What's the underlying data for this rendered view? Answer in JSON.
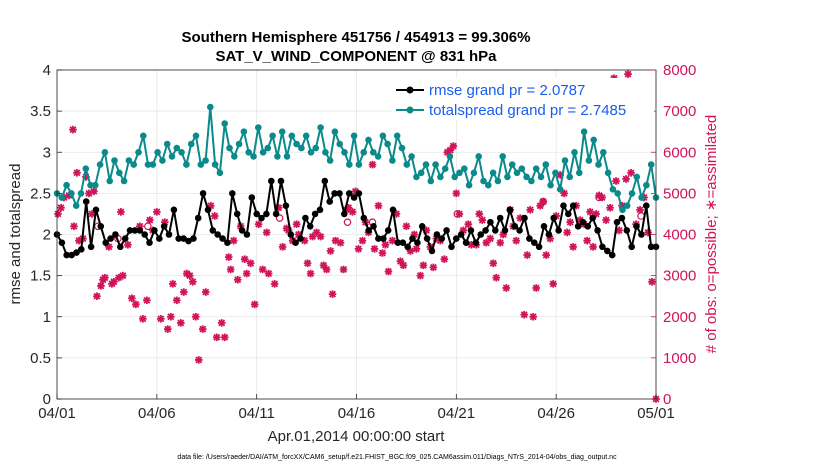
{
  "chart_data": {
    "type": "line",
    "title": "Southern Hemisphere 451756 / 454913 = 99.306%",
    "subtitle": "SAT_V_WIND_COMPONENT @ 831 hPa",
    "xlabel": "Apr.01,2014 00:00:00 start",
    "ylabel": "rmse and totalspread",
    "y2label": "# of obs: o=possible; ∗=assimilated",
    "footnote": "data file: /Users/raeder/DAI/ATM_forcXX/CAM6_setup/f.e21.FHIST_BGC.f09_025.CAM6assim.011/Diags_NTrS_2014-04/obs_diag_output.nc",
    "xlim": [
      0,
      30
    ],
    "ylim": [
      0,
      4
    ],
    "y2lim": [
      0,
      8000
    ],
    "x_tick_labels": [
      "04/01",
      "04/06",
      "04/11",
      "04/16",
      "04/21",
      "04/26",
      "05/01"
    ],
    "x_tick_days": [
      0,
      5,
      10,
      15,
      20,
      25,
      30
    ],
    "y_ticks": [
      0,
      0.5,
      1,
      1.5,
      2,
      2.5,
      3,
      3.5,
      4
    ],
    "y_tick_labels": [
      "0",
      "0.5",
      "1",
      "1.5",
      "2",
      "2.5",
      "3",
      "3.5",
      "4"
    ],
    "y2_ticks": [
      0,
      1000,
      2000,
      3000,
      4000,
      5000,
      6000,
      7000,
      8000
    ],
    "grid": true,
    "legend_position": "top-right",
    "colors": {
      "rmse": "#000000",
      "totalspread": "#0a8a8a",
      "obs": "#d0145a",
      "legend_text": "#1a5cf0"
    },
    "series": [
      {
        "name": "rmse grand pr = 2.0787",
        "axis": "left",
        "values": [
          2.0,
          1.9,
          1.75,
          1.75,
          1.78,
          1.82,
          2.4,
          1.85,
          2.3,
          2.1,
          1.9,
          1.95,
          2.0,
          1.85,
          1.95,
          2.05,
          2.05,
          2.05,
          2.0,
          1.9,
          2.05,
          1.95,
          2.1,
          2.0,
          2.3,
          1.95,
          1.95,
          1.92,
          1.95,
          2.2,
          2.5,
          2.3,
          2.05,
          2.0,
          1.95,
          1.9,
          2.5,
          2.25,
          2.05,
          2.0,
          2.45,
          2.25,
          2.2,
          2.25,
          2.65,
          2.25,
          2.65,
          2.35,
          2.0,
          1.9,
          1.95,
          2.2,
          2.1,
          2.25,
          2.3,
          2.65,
          2.4,
          2.5,
          2.5,
          2.25,
          2.5,
          2.45,
          2.5,
          2.2,
          2.05,
          2.1,
          1.95,
          1.95,
          2.05,
          2.3,
          1.9,
          1.9,
          1.85,
          1.95,
          1.9,
          2.1,
          1.95,
          1.8,
          2.0,
          1.95,
          2.05,
          1.85,
          1.95,
          2.0,
          1.9,
          2.05,
          1.9,
          2.0,
          2.05,
          2.15,
          2.05,
          2.2,
          2.05,
          2.3,
          2.1,
          2.05,
          2.2,
          1.95,
          1.9,
          1.85,
          2.1,
          2.0,
          2.2,
          2.05,
          2.35,
          2.25,
          2.35,
          2.1,
          2.15,
          2.1,
          2.2,
          2.05,
          1.85,
          1.8,
          1.75,
          2.15,
          2.2,
          2.05,
          1.85,
          2.1,
          2.0,
          2.35,
          1.85,
          1.85
        ]
      },
      {
        "name": "totalspread grand pr = 2.7485",
        "axis": "left",
        "values": [
          2.5,
          2.45,
          2.6,
          2.5,
          2.35,
          2.5,
          2.8,
          2.6,
          2.6,
          2.85,
          3.0,
          2.65,
          2.9,
          2.75,
          2.65,
          2.9,
          2.85,
          3.0,
          3.2,
          2.85,
          2.85,
          3.0,
          2.9,
          3.1,
          2.95,
          3.05,
          3.0,
          2.85,
          3.1,
          3.2,
          2.85,
          2.9,
          3.55,
          2.85,
          2.75,
          3.35,
          3.05,
          2.95,
          3.1,
          3.25,
          3.0,
          2.95,
          3.3,
          3.0,
          3.05,
          3.2,
          2.95,
          3.25,
          2.95,
          3.2,
          3.1,
          3.05,
          3.2,
          3.0,
          3.05,
          3.3,
          3.0,
          2.9,
          3.25,
          3.1,
          3.0,
          2.85,
          3.2,
          2.85,
          3.0,
          3.15,
          3.0,
          2.95,
          3.2,
          3.1,
          2.9,
          3.2,
          3.05,
          2.85,
          2.95,
          2.7,
          2.75,
          2.85,
          2.65,
          2.85,
          2.7,
          2.8,
          2.95,
          2.7,
          2.75,
          2.8,
          2.6,
          2.75,
          2.95,
          2.65,
          2.6,
          2.75,
          2.65,
          2.95,
          2.7,
          2.85,
          2.75,
          2.8,
          2.7,
          2.65,
          2.8,
          2.7,
          2.85,
          2.6,
          2.75,
          2.55,
          2.9,
          2.7,
          3.0,
          2.75,
          3.25,
          2.9,
          3.15,
          2.85,
          3.0,
          2.75,
          2.55,
          2.5,
          2.3,
          2.35,
          2.5,
          2.7,
          2.45,
          2.6,
          2.85,
          2.45
        ]
      }
    ],
    "obs_assimilated": [
      {
        "day": 0.05,
        "count": 4500
      },
      {
        "day": 0.2,
        "count": 4650
      },
      {
        "day": 0.35,
        "count": 4900
      },
      {
        "day": 0.6,
        "count": 4950
      },
      {
        "day": 0.8,
        "count": 6550
      },
      {
        "day": 0.85,
        "count": 4200
      },
      {
        "day": 1.0,
        "count": 5500
      },
      {
        "day": 1.1,
        "count": 3850
      },
      {
        "day": 1.3,
        "count": 3900
      },
      {
        "day": 1.45,
        "count": 5400
      },
      {
        "day": 1.6,
        "count": 5000
      },
      {
        "day": 1.75,
        "count": 4500
      },
      {
        "day": 1.85,
        "count": 5050
      },
      {
        "day": 2.0,
        "count": 2500
      },
      {
        "day": 2.2,
        "count": 2750
      },
      {
        "day": 2.3,
        "count": 2900
      },
      {
        "day": 2.4,
        "count": 2950
      },
      {
        "day": 2.6,
        "count": 3700
      },
      {
        "day": 2.75,
        "count": 2800
      },
      {
        "day": 2.85,
        "count": 2850
      },
      {
        "day": 3.1,
        "count": 2950
      },
      {
        "day": 3.2,
        "count": 4550
      },
      {
        "day": 3.3,
        "count": 3000
      },
      {
        "day": 3.55,
        "count": 3750
      },
      {
        "day": 3.75,
        "count": 2450
      },
      {
        "day": 3.95,
        "count": 2300
      },
      {
        "day": 4.15,
        "count": 4200
      },
      {
        "day": 4.3,
        "count": 1950
      },
      {
        "day": 4.5,
        "count": 2400
      },
      {
        "day": 4.65,
        "count": 4350
      },
      {
        "day": 4.8,
        "count": 4100
      },
      {
        "day": 5.0,
        "count": 4550
      },
      {
        "day": 5.2,
        "count": 1950
      },
      {
        "day": 5.4,
        "count": 4300
      },
      {
        "day": 5.55,
        "count": 1700
      },
      {
        "day": 5.7,
        "count": 2000
      },
      {
        "day": 5.8,
        "count": 2800
      },
      {
        "day": 6.0,
        "count": 2400
      },
      {
        "day": 6.2,
        "count": 1850
      },
      {
        "day": 6.35,
        "count": 2600
      },
      {
        "day": 6.5,
        "count": 3050
      },
      {
        "day": 6.65,
        "count": 3000
      },
      {
        "day": 6.8,
        "count": 2850
      },
      {
        "day": 6.95,
        "count": 2000
      },
      {
        "day": 7.1,
        "count": 950
      },
      {
        "day": 7.3,
        "count": 1700
      },
      {
        "day": 7.45,
        "count": 2600
      },
      {
        "day": 7.7,
        "count": 4700
      },
      {
        "day": 7.9,
        "count": 4450
      },
      {
        "day": 8.0,
        "count": 1500
      },
      {
        "day": 8.25,
        "count": 1850
      },
      {
        "day": 8.4,
        "count": 1500
      },
      {
        "day": 8.6,
        "count": 3450
      },
      {
        "day": 8.7,
        "count": 3150
      },
      {
        "day": 8.85,
        "count": 3850
      },
      {
        "day": 9.05,
        "count": 2900
      },
      {
        "day": 9.2,
        "count": 4200
      },
      {
        "day": 9.4,
        "count": 3400
      },
      {
        "day": 9.5,
        "count": 3050
      },
      {
        "day": 9.7,
        "count": 3300
      },
      {
        "day": 9.9,
        "count": 2300
      },
      {
        "day": 10.1,
        "count": 4250
      },
      {
        "day": 10.3,
        "count": 3150
      },
      {
        "day": 10.5,
        "count": 4050
      },
      {
        "day": 10.6,
        "count": 3050
      },
      {
        "day": 10.9,
        "count": 2800
      },
      {
        "day": 11.1,
        "count": 4650
      },
      {
        "day": 11.3,
        "count": 3700
      },
      {
        "day": 11.5,
        "count": 4150
      },
      {
        "day": 11.6,
        "count": 4100
      },
      {
        "day": 11.8,
        "count": 3850
      },
      {
        "day": 12.0,
        "count": 4250
      },
      {
        "day": 12.1,
        "count": 4000
      },
      {
        "day": 12.4,
        "count": 3850
      },
      {
        "day": 12.55,
        "count": 3300
      },
      {
        "day": 12.7,
        "count": 3050
      },
      {
        "day": 12.8,
        "count": 3950
      },
      {
        "day": 13.0,
        "count": 4050
      },
      {
        "day": 13.2,
        "count": 3950
      },
      {
        "day": 13.35,
        "count": 3250
      },
      {
        "day": 13.5,
        "count": 3150
      },
      {
        "day": 13.7,
        "count": 3600
      },
      {
        "day": 13.8,
        "count": 2550
      },
      {
        "day": 13.95,
        "count": 3850
      },
      {
        "day": 14.2,
        "count": 3800
      },
      {
        "day": 14.35,
        "count": 3150
      },
      {
        "day": 14.5,
        "count": 4600
      },
      {
        "day": 14.6,
        "count": 4650
      },
      {
        "day": 14.8,
        "count": 4550
      },
      {
        "day": 14.95,
        "count": 5050
      },
      {
        "day": 15.1,
        "count": 3650
      },
      {
        "day": 15.3,
        "count": 3850
      },
      {
        "day": 15.45,
        "count": 4300
      },
      {
        "day": 15.6,
        "count": 4050
      },
      {
        "day": 15.8,
        "count": 5700
      },
      {
        "day": 15.9,
        "count": 3650
      },
      {
        "day": 16.1,
        "count": 4700
      },
      {
        "day": 16.3,
        "count": 3550
      },
      {
        "day": 16.45,
        "count": 3750
      },
      {
        "day": 16.6,
        "count": 3100
      },
      {
        "day": 16.8,
        "count": 3850
      },
      {
        "day": 17.0,
        "count": 4500
      },
      {
        "day": 17.2,
        "count": 3350
      },
      {
        "day": 17.35,
        "count": 3250
      },
      {
        "day": 17.5,
        "count": 4200
      },
      {
        "day": 17.7,
        "count": 3600
      },
      {
        "day": 17.9,
        "count": 4000
      },
      {
        "day": 18.0,
        "count": 3650
      },
      {
        "day": 18.2,
        "count": 3000
      },
      {
        "day": 18.35,
        "count": 3250
      },
      {
        "day": 18.5,
        "count": 4100
      },
      {
        "day": 18.7,
        "count": 3700
      },
      {
        "day": 18.85,
        "count": 3200
      },
      {
        "day": 19.0,
        "count": 3900
      },
      {
        "day": 19.2,
        "count": 3850
      },
      {
        "day": 19.4,
        "count": 3400
      },
      {
        "day": 19.55,
        "count": 6000
      },
      {
        "day": 19.7,
        "count": 6050
      },
      {
        "day": 19.85,
        "count": 6150
      },
      {
        "day": 20.0,
        "count": 5000
      },
      {
        "day": 20.15,
        "count": 4500
      },
      {
        "day": 20.35,
        "count": 4100
      },
      {
        "day": 20.6,
        "count": 4250
      },
      {
        "day": 20.75,
        "count": 3750
      },
      {
        "day": 21.0,
        "count": 3750
      },
      {
        "day": 21.15,
        "count": 4500
      },
      {
        "day": 21.3,
        "count": 4350
      },
      {
        "day": 21.5,
        "count": 3800
      },
      {
        "day": 21.7,
        "count": 3900
      },
      {
        "day": 21.85,
        "count": 3300
      },
      {
        "day": 22.0,
        "count": 2950
      },
      {
        "day": 22.2,
        "count": 3800
      },
      {
        "day": 22.35,
        "count": 4000
      },
      {
        "day": 22.5,
        "count": 2700
      },
      {
        "day": 22.7,
        "count": 4600
      },
      {
        "day": 22.85,
        "count": 4200
      },
      {
        "day": 23.0,
        "count": 3850
      },
      {
        "day": 23.2,
        "count": 4400
      },
      {
        "day": 23.4,
        "count": 2050
      },
      {
        "day": 23.55,
        "count": 3500
      },
      {
        "day": 23.7,
        "count": 4600
      },
      {
        "day": 23.85,
        "count": 2000
      },
      {
        "day": 24.0,
        "count": 2700
      },
      {
        "day": 24.2,
        "count": 4700
      },
      {
        "day": 24.35,
        "count": 4800
      },
      {
        "day": 24.5,
        "count": 3500
      },
      {
        "day": 24.7,
        "count": 3900
      },
      {
        "day": 24.85,
        "count": 2800
      },
      {
        "day": 25.0,
        "count": 4450
      },
      {
        "day": 25.2,
        "count": 5450
      },
      {
        "day": 25.4,
        "count": 5000
      },
      {
        "day": 25.55,
        "count": 4050
      },
      {
        "day": 25.7,
        "count": 4300
      },
      {
        "day": 25.85,
        "count": 3700
      },
      {
        "day": 26.0,
        "count": 4700
      },
      {
        "day": 26.2,
        "count": 4350
      },
      {
        "day": 26.4,
        "count": 4250
      },
      {
        "day": 26.55,
        "count": 3850
      },
      {
        "day": 26.7,
        "count": 4550
      },
      {
        "day": 26.85,
        "count": 3700
      },
      {
        "day": 27.0,
        "count": 4500
      },
      {
        "day": 27.15,
        "count": 4950
      },
      {
        "day": 27.3,
        "count": 4900
      },
      {
        "day": 27.5,
        "count": 4350
      },
      {
        "day": 27.7,
        "count": 4650
      },
      {
        "day": 27.9,
        "count": 7800
      },
      {
        "day": 28.0,
        "count": 5300
      },
      {
        "day": 28.15,
        "count": 4100
      },
      {
        "day": 28.3,
        "count": 4700
      },
      {
        "day": 28.5,
        "count": 5350
      },
      {
        "day": 28.6,
        "count": 7900
      },
      {
        "day": 28.75,
        "count": 5500
      },
      {
        "day": 29.0,
        "count": 4250
      },
      {
        "day": 29.2,
        "count": 4600
      },
      {
        "day": 29.4,
        "count": 4900
      },
      {
        "day": 29.6,
        "count": 4050
      },
      {
        "day": 29.8,
        "count": 2850
      },
      {
        "day": 30.0,
        "count": 0
      }
    ],
    "obs_possible": [
      {
        "day": 2.05,
        "count": 4200
      },
      {
        "day": 3.05,
        "count": 3900
      },
      {
        "day": 4.55,
        "count": 4200
      },
      {
        "day": 11.15,
        "count": 4400
      },
      {
        "day": 14.55,
        "count": 4300
      },
      {
        "day": 15.8,
        "count": 4300
      },
      {
        "day": 20.05,
        "count": 4500
      },
      {
        "day": 24.35,
        "count": 4800
      },
      {
        "day": 27.15,
        "count": 4900
      },
      {
        "day": 29.25,
        "count": 4450
      }
    ]
  }
}
